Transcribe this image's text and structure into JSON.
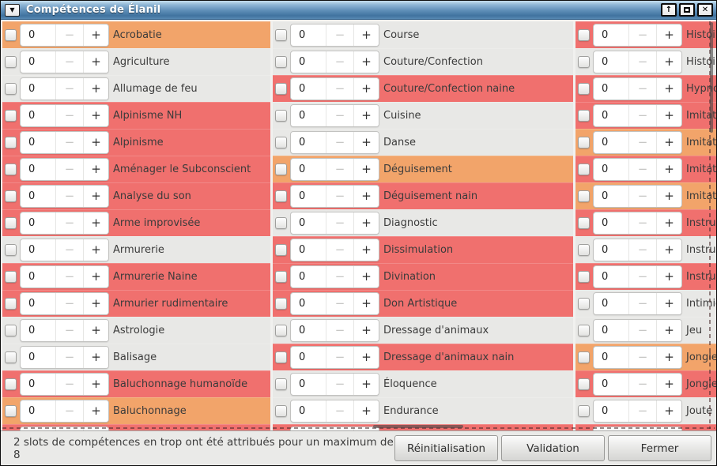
{
  "window": {
    "title": "Compétences de Élanil",
    "menu_glyph": "▼",
    "controls": {
      "shade_glyph": "↑",
      "close_glyph": "✕"
    }
  },
  "colors": {
    "red": "#f0706e",
    "orange": "#f2a46a",
    "gray": "#e8e8e6",
    "titlebar_top": "#c6dfee",
    "titlebar_bottom": "#40739f"
  },
  "spin": {
    "minus_label": "−",
    "plus_label": "+"
  },
  "columns": [
    {
      "rows": [
        {
          "label": "Acrobatie",
          "color": "orange",
          "value": "0"
        },
        {
          "label": "Agriculture",
          "color": "gray",
          "value": "0"
        },
        {
          "label": "Allumage de feu",
          "color": "gray",
          "value": "0"
        },
        {
          "label": "Alpinisme NH",
          "color": "red",
          "value": "0"
        },
        {
          "label": "Alpinisme",
          "color": "red",
          "value": "0"
        },
        {
          "label": "Aménager le Subconscient",
          "color": "red",
          "value": "0"
        },
        {
          "label": "Analyse du son",
          "color": "red",
          "value": "0"
        },
        {
          "label": "Arme improvisée",
          "color": "red",
          "value": "0"
        },
        {
          "label": "Armurerie",
          "color": "gray",
          "value": "0"
        },
        {
          "label": "Armurerie Naine",
          "color": "red",
          "value": "0"
        },
        {
          "label": "Armurier rudimentaire",
          "color": "red",
          "value": "0"
        },
        {
          "label": "Astrologie",
          "color": "gray",
          "value": "0"
        },
        {
          "label": "Balisage",
          "color": "gray",
          "value": "0"
        },
        {
          "label": "Baluchonnage humanoïde",
          "color": "red",
          "value": "0"
        },
        {
          "label": "Baluchonnage",
          "color": "orange",
          "value": "0"
        },
        {
          "label": "",
          "color": "red",
          "value": ""
        }
      ]
    },
    {
      "rows": [
        {
          "label": "Course",
          "color": "gray",
          "value": "0"
        },
        {
          "label": "Couture/Confection",
          "color": "gray",
          "value": "0"
        },
        {
          "label": "Couture/Confection naine",
          "color": "red",
          "value": "0"
        },
        {
          "label": "Cuisine",
          "color": "gray",
          "value": "0"
        },
        {
          "label": "Danse",
          "color": "gray",
          "value": "0"
        },
        {
          "label": "Déguisement",
          "color": "orange",
          "value": "0"
        },
        {
          "label": "Déguisement nain",
          "color": "red",
          "value": "0"
        },
        {
          "label": "Diagnostic",
          "color": "gray",
          "value": "0"
        },
        {
          "label": "Dissimulation",
          "color": "red",
          "value": "0"
        },
        {
          "label": "Divination",
          "color": "red",
          "value": "0"
        },
        {
          "label": "Don Artistique",
          "color": "red",
          "value": "0"
        },
        {
          "label": "Dressage d'animaux",
          "color": "gray",
          "value": "0"
        },
        {
          "label": "Dressage d'animaux nain",
          "color": "red",
          "value": "0"
        },
        {
          "label": "Éloquence",
          "color": "gray",
          "value": "0"
        },
        {
          "label": "Endurance",
          "color": "gray",
          "value": "0"
        },
        {
          "label": "",
          "color": "red",
          "value": ""
        }
      ]
    },
    {
      "rows": [
        {
          "label": "Histoire",
          "color": "red",
          "value": "0"
        },
        {
          "label": "Histoire",
          "color": "gray",
          "value": "0"
        },
        {
          "label": "Hypnose",
          "color": "red",
          "value": "0"
        },
        {
          "label": "Imitation",
          "color": "red",
          "value": "0"
        },
        {
          "label": "Imitation",
          "color": "orange",
          "value": "0"
        },
        {
          "label": "Imitation",
          "color": "red",
          "value": "0"
        },
        {
          "label": "Imitation",
          "color": "orange",
          "value": "0"
        },
        {
          "label": "Instrument",
          "color": "red",
          "value": "0"
        },
        {
          "label": "Instrument",
          "color": "gray",
          "value": "0"
        },
        {
          "label": "Instrument",
          "color": "red",
          "value": "0"
        },
        {
          "label": "Intimidation",
          "color": "gray",
          "value": "0"
        },
        {
          "label": "Jeu",
          "color": "gray",
          "value": "0"
        },
        {
          "label": "Jonglerie",
          "color": "orange",
          "value": "0"
        },
        {
          "label": "Jonglerie",
          "color": "red",
          "value": "0"
        },
        {
          "label": "Joute",
          "color": "gray",
          "value": "0"
        },
        {
          "label": "",
          "color": "red",
          "value": ""
        }
      ]
    }
  ],
  "statusbar": {
    "message": "2 slots de compétences en trop ont été attribués pour un maximum de 8",
    "buttons": {
      "reset": "Réinitialisation",
      "validate": "Validation",
      "close": "Fermer"
    }
  }
}
